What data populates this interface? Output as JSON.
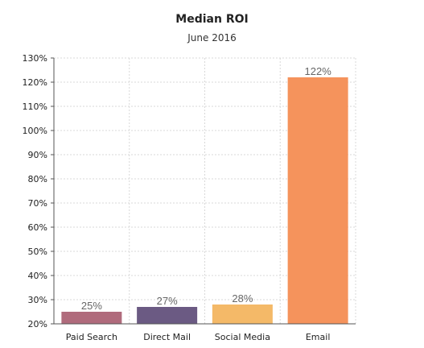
{
  "chart_data": {
    "type": "bar",
    "title": "Median ROI",
    "subtitle": "June 2016",
    "categories": [
      "Paid Search",
      "Direct Mail",
      "Social Media",
      "Email"
    ],
    "values": [
      25,
      27,
      28,
      122
    ],
    "data_labels": [
      "25%",
      "27%",
      "28%",
      "122%"
    ],
    "colors": [
      "#b06b7c",
      "#6b5a83",
      "#f4b968",
      "#f5935c"
    ],
    "ylim": [
      20,
      130
    ],
    "yticks": [
      20,
      30,
      40,
      50,
      60,
      70,
      80,
      90,
      100,
      110,
      120,
      130
    ],
    "ytick_labels": [
      "20%",
      "30%",
      "40%",
      "50%",
      "60%",
      "70%",
      "80%",
      "90%",
      "100%",
      "110%",
      "120%",
      "130%"
    ],
    "grid": true,
    "xlabel": "",
    "ylabel": ""
  }
}
